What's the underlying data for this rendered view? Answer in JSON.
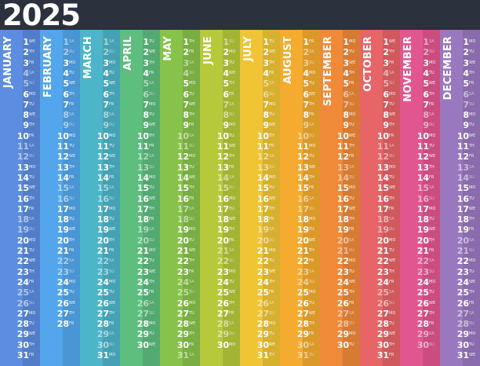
{
  "title": "2025",
  "weekday_abbr": [
    "MO",
    "TU",
    "WE",
    "TH",
    "FR",
    "SA",
    "SU"
  ],
  "months": [
    {
      "name": "JANUARY",
      "days": 31,
      "start": 2,
      "color": "#5c8de0"
    },
    {
      "name": "FEBRUARY",
      "days": 28,
      "start": 5,
      "color": "#53a6ec"
    },
    {
      "name": "MARCH",
      "days": 31,
      "start": 5,
      "color": "#4db5c9"
    },
    {
      "name": "APRIL",
      "days": 30,
      "start": 1,
      "color": "#5dbe7e"
    },
    {
      "name": "MAY",
      "days": 31,
      "start": 3,
      "color": "#87c24a"
    },
    {
      "name": "JUNE",
      "days": 30,
      "start": 6,
      "color": "#b6c93b"
    },
    {
      "name": "JULY",
      "days": 31,
      "start": 1,
      "color": "#f0c435"
    },
    {
      "name": "AUGUST",
      "days": 31,
      "start": 4,
      "color": "#f4ab2f"
    },
    {
      "name": "SEPTEMBER",
      "days": 30,
      "start": 0,
      "color": "#f08a39"
    },
    {
      "name": "OCTOBER",
      "days": 31,
      "start": 2,
      "color": "#e76467"
    },
    {
      "name": "NOVEMBER",
      "days": 30,
      "start": 5,
      "color": "#e2568f"
    },
    {
      "name": "DECEMBER",
      "days": 31,
      "start": 0,
      "color": "#9a78c0"
    }
  ]
}
